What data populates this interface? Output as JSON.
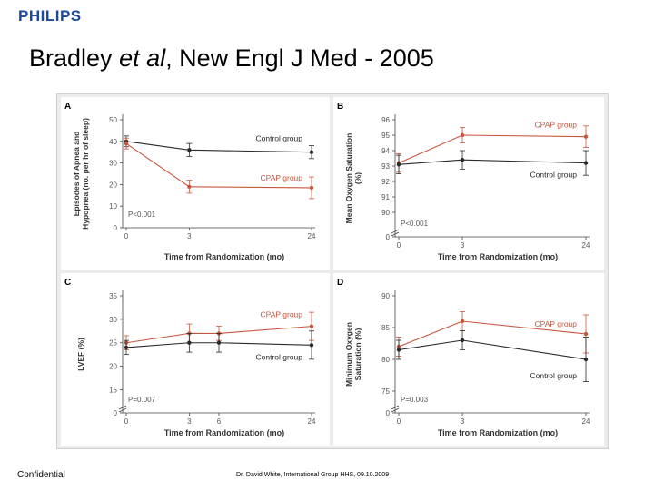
{
  "header": {
    "logo": "PHILIPS",
    "title_prefix": "Bradley ",
    "title_emph": "et al",
    "title_suffix": ", New Engl J Med - 2005"
  },
  "footer": {
    "left": "Confidential",
    "center": "Dr. David White, International Group HHS, 09.10.2009"
  },
  "colors": {
    "control": "#2a2a2a",
    "cpap": "#c8563c",
    "panel_bg": "#ffffff",
    "figure_bg": "#ececec"
  },
  "chart_data": [
    {
      "panel_letter": "A",
      "type": "line",
      "ylabel": [
        "Episodes of Apnea and",
        "Hypopnea (no. per hr of sleep)"
      ],
      "xlabel": "Time from Randomization (mo)",
      "x_ticks": [
        0,
        3,
        24
      ],
      "y_ticks": [
        0,
        10,
        20,
        30,
        40,
        50
      ],
      "ylim": [
        0,
        50
      ],
      "y_break": false,
      "p_value": "P<0.001",
      "series": [
        {
          "name": "Control group",
          "key": "control",
          "x": [
            0,
            3,
            24
          ],
          "values": [
            40,
            36,
            35
          ],
          "err": [
            2.5,
            3,
            3
          ]
        },
        {
          "name": "CPAP group",
          "key": "cpap",
          "x": [
            0,
            3,
            24
          ],
          "values": [
            39,
            19,
            18.5
          ],
          "err": [
            2.5,
            3,
            5
          ]
        }
      ]
    },
    {
      "panel_letter": "B",
      "type": "line",
      "ylabel": [
        "Mean Oxygen Saturation",
        "(%)"
      ],
      "xlabel": "Time from Randomization (mo)",
      "x_ticks": [
        0,
        3,
        24
      ],
      "y_ticks": [
        0,
        90,
        91,
        92,
        93,
        94,
        95,
        96
      ],
      "ylim": [
        89,
        96
      ],
      "y_break": true,
      "p_value": "P<0.001",
      "series": [
        {
          "name": "CPAP group",
          "key": "cpap",
          "x": [
            0,
            3,
            24
          ],
          "values": [
            93.2,
            95,
            94.9
          ],
          "err": [
            0.6,
            0.5,
            0.7
          ]
        },
        {
          "name": "Control group",
          "key": "control",
          "x": [
            0,
            3,
            24
          ],
          "values": [
            93.1,
            93.4,
            93.2
          ],
          "err": [
            0.6,
            0.6,
            0.8
          ]
        }
      ]
    },
    {
      "panel_letter": "C",
      "type": "line",
      "ylabel": [
        "LVEF (%)"
      ],
      "xlabel": "Time from Randomization (mo)",
      "x_ticks": [
        0,
        3,
        6,
        24
      ],
      "y_ticks": [
        0,
        15,
        20,
        25,
        30,
        35
      ],
      "ylim": [
        12,
        35
      ],
      "y_break": true,
      "p_value": "P=0.007",
      "series": [
        {
          "name": "CPAP group",
          "key": "cpap",
          "x": [
            0,
            3,
            6,
            24
          ],
          "values": [
            25,
            27,
            27,
            28.5
          ],
          "err": [
            1.5,
            2,
            1.5,
            3
          ]
        },
        {
          "name": "Control group",
          "key": "control",
          "x": [
            0,
            3,
            6,
            24
          ],
          "values": [
            24,
            25,
            25,
            24.5
          ],
          "err": [
            1.5,
            2,
            2,
            3
          ]
        }
      ]
    },
    {
      "panel_letter": "D",
      "type": "line",
      "ylabel": [
        "Minimum Oxygen",
        "Saturation (%)"
      ],
      "xlabel": "Time from Randomization (mo)",
      "x_ticks": [
        0,
        3,
        24
      ],
      "y_ticks": [
        0,
        75,
        80,
        85,
        90
      ],
      "ylim": [
        73,
        90
      ],
      "y_break": true,
      "p_value": "P=0.003",
      "series": [
        {
          "name": "CPAP group",
          "key": "cpap",
          "x": [
            0,
            3,
            24
          ],
          "values": [
            82,
            86,
            84
          ],
          "err": [
            1.5,
            1.5,
            3
          ]
        },
        {
          "name": "Control group",
          "key": "control",
          "x": [
            0,
            3,
            24
          ],
          "values": [
            81.5,
            83,
            80
          ],
          "err": [
            1.5,
            1.5,
            3.5
          ]
        }
      ]
    }
  ]
}
